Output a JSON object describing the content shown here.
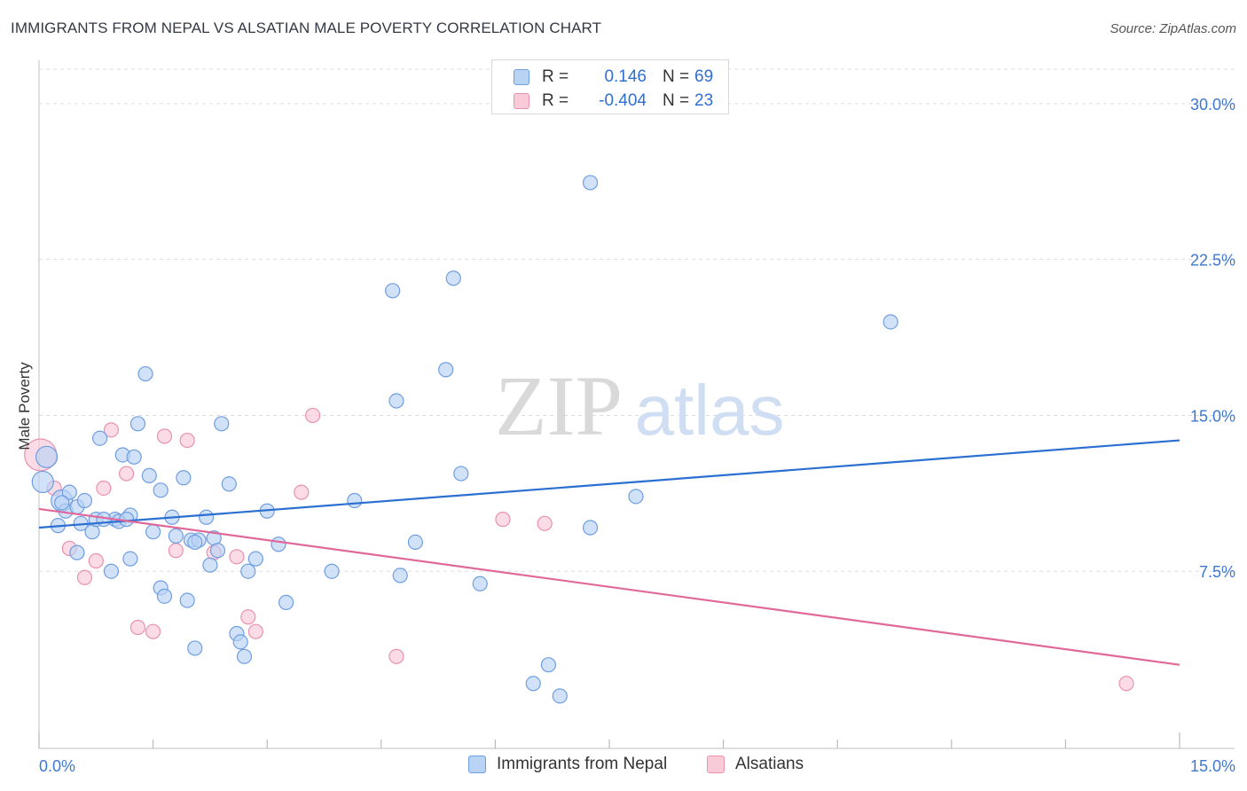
{
  "title": "IMMIGRANTS FROM NEPAL VS ALSATIAN MALE POVERTY CORRELATION CHART",
  "source": "Source: ZipAtlas.com",
  "watermark": {
    "zip": "ZIP",
    "atlas": "atlas"
  },
  "colors": {
    "blue_fill": "#b9d3f5",
    "blue_stroke": "#6f9ee0",
    "blue_line": "#2a6fd1",
    "pink_fill": "#f9cad8",
    "pink_stroke": "#e991ae",
    "pink_line": "#e0699a",
    "axis_text": "#3d78d0",
    "grid": "#dddddd"
  },
  "legend": {
    "series1": {
      "r_label": "R =",
      "r_value": "0.146",
      "n_label": "N =",
      "n_value": "69"
    },
    "series2": {
      "r_label": "R =",
      "r_value": "-0.404",
      "n_label": "N =",
      "n_value": "23"
    }
  },
  "bottom_legend": {
    "series1": "Immigrants from Nepal",
    "series2": "Alsatians"
  },
  "chart_data": {
    "type": "scatter",
    "ylabel": "Male Poverty",
    "xlim": [
      0,
      15
    ],
    "ylim": [
      0,
      32
    ],
    "x_tick_labels": [
      {
        "value": 0,
        "label": "0.0%"
      },
      {
        "value": 15,
        "label": "15.0%"
      }
    ],
    "y_tick_labels": [
      {
        "value": 7.5,
        "label": "7.5%"
      },
      {
        "value": 15,
        "label": "15.0%"
      },
      {
        "value": 22.5,
        "label": "22.5%"
      },
      {
        "value": 30,
        "label": "30.0%"
      }
    ],
    "series": [
      {
        "name": "Immigrants from Nepal",
        "color": "blue",
        "trend": {
          "x0": 0,
          "y0": 9.6,
          "x1": 15,
          "y1": 13.8
        },
        "points": [
          [
            0.1,
            13.0,
            10
          ],
          [
            0.05,
            11.8,
            10
          ],
          [
            0.3,
            10.9,
            10
          ],
          [
            0.35,
            10.4,
            8
          ],
          [
            0.4,
            11.3,
            8
          ],
          [
            0.3,
            10.8,
            8
          ],
          [
            0.25,
            9.7,
            8
          ],
          [
            0.5,
            10.6,
            8
          ],
          [
            0.55,
            9.8,
            8
          ],
          [
            0.7,
            9.4,
            8
          ],
          [
            0.75,
            10.0,
            8
          ],
          [
            0.6,
            10.9,
            8
          ],
          [
            1.0,
            10.0,
            8
          ],
          [
            1.05,
            9.9,
            8
          ],
          [
            1.2,
            10.2,
            8
          ],
          [
            0.5,
            8.4,
            8
          ],
          [
            0.8,
            13.9,
            8
          ],
          [
            1.1,
            13.1,
            8
          ],
          [
            1.25,
            13.0,
            8
          ],
          [
            1.4,
            17.0,
            8
          ],
          [
            1.3,
            14.6,
            8
          ],
          [
            1.45,
            12.1,
            8
          ],
          [
            1.6,
            11.4,
            8
          ],
          [
            1.5,
            9.4,
            8
          ],
          [
            1.8,
            9.2,
            8
          ],
          [
            1.75,
            10.1,
            8
          ],
          [
            1.9,
            12.0,
            8
          ],
          [
            2.0,
            9.0,
            8
          ],
          [
            2.1,
            9.0,
            8
          ],
          [
            2.05,
            8.9,
            8
          ],
          [
            2.2,
            10.1,
            8
          ],
          [
            2.25,
            7.8,
            8
          ],
          [
            2.3,
            9.1,
            8
          ],
          [
            2.35,
            8.5,
            8
          ],
          [
            1.2,
            8.1,
            8
          ],
          [
            0.95,
            7.5,
            8
          ],
          [
            1.6,
            6.7,
            8
          ],
          [
            1.65,
            6.3,
            8
          ],
          [
            1.95,
            6.1,
            8
          ],
          [
            2.05,
            3.8,
            8
          ],
          [
            2.6,
            4.5,
            8
          ],
          [
            2.65,
            4.1,
            8
          ],
          [
            2.7,
            3.4,
            8
          ],
          [
            2.75,
            7.5,
            8
          ],
          [
            2.85,
            8.1,
            8
          ],
          [
            3.0,
            10.4,
            8
          ],
          [
            3.15,
            8.8,
            8
          ],
          [
            3.25,
            6.0,
            8
          ],
          [
            2.5,
            11.7,
            8
          ],
          [
            2.4,
            14.6,
            8
          ],
          [
            3.85,
            7.5,
            8
          ],
          [
            4.15,
            10.9,
            8
          ],
          [
            4.65,
            21.0,
            8
          ],
          [
            4.7,
            15.7,
            8
          ],
          [
            4.75,
            7.3,
            8
          ],
          [
            4.95,
            8.9,
            8
          ],
          [
            5.35,
            17.2,
            8
          ],
          [
            5.45,
            21.6,
            8
          ],
          [
            5.55,
            12.2,
            8
          ],
          [
            5.8,
            6.9,
            8
          ],
          [
            6.5,
            2.1,
            8
          ],
          [
            6.7,
            3.0,
            8
          ],
          [
            6.85,
            1.5,
            8
          ],
          [
            7.25,
            26.2,
            8
          ],
          [
            7.25,
            9.6,
            8
          ],
          [
            7.85,
            11.1,
            8
          ],
          [
            11.2,
            19.5,
            8
          ],
          [
            1.15,
            10.0,
            8
          ],
          [
            0.85,
            10.0,
            8
          ]
        ]
      },
      {
        "name": "Alsatians",
        "color": "pink",
        "trend": {
          "x0": 0,
          "y0": 10.5,
          "x1": 15,
          "y1": 3.0
        },
        "points": [
          [
            0.02,
            13.1,
            16
          ],
          [
            0.2,
            11.5,
            8
          ],
          [
            0.4,
            8.6,
            8
          ],
          [
            0.6,
            7.2,
            8
          ],
          [
            0.75,
            8.0,
            8
          ],
          [
            0.85,
            11.5,
            8
          ],
          [
            0.95,
            14.3,
            8
          ],
          [
            1.15,
            12.2,
            8
          ],
          [
            1.3,
            4.8,
            8
          ],
          [
            1.5,
            4.6,
            8
          ],
          [
            1.65,
            14.0,
            8
          ],
          [
            1.8,
            8.5,
            8
          ],
          [
            1.95,
            13.8,
            8
          ],
          [
            2.3,
            8.4,
            8
          ],
          [
            2.6,
            8.2,
            8
          ],
          [
            2.75,
            5.3,
            8
          ],
          [
            2.85,
            4.6,
            8
          ],
          [
            3.45,
            11.3,
            8
          ],
          [
            3.6,
            15.0,
            8
          ],
          [
            4.7,
            3.4,
            8
          ],
          [
            6.1,
            10.0,
            8
          ],
          [
            6.65,
            9.8,
            8
          ],
          [
            14.3,
            2.1,
            8
          ]
        ]
      }
    ]
  }
}
